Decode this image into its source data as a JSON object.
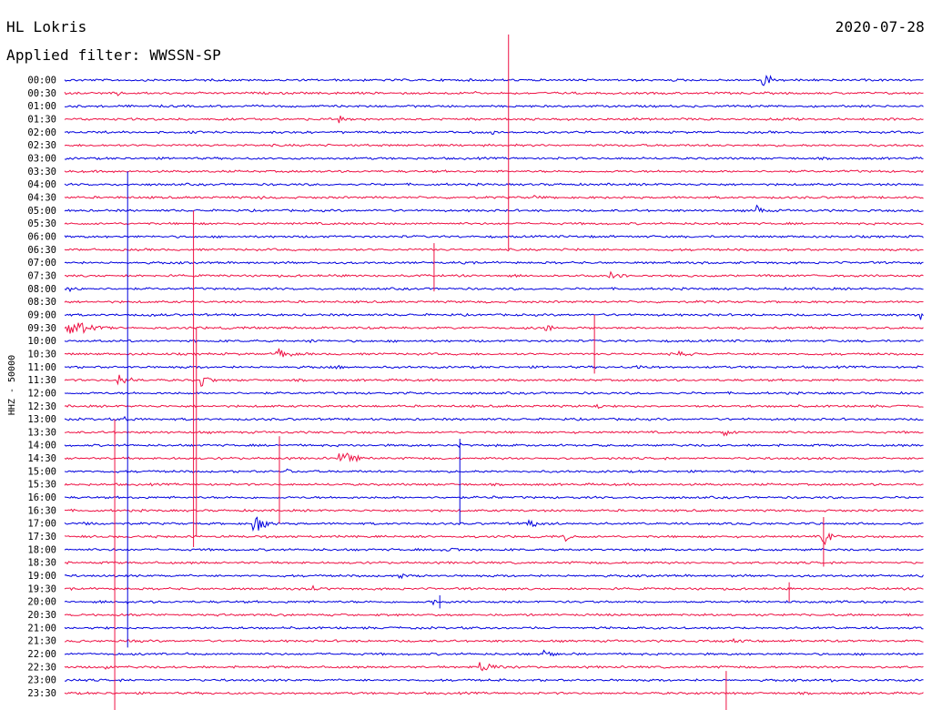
{
  "header": {
    "station": "HL Lokris",
    "filter": "Applied filter: WWSSN-SP",
    "date": "2020-07-28"
  },
  "chart_data": {
    "type": "line",
    "title": "HL Lokris",
    "subtitle": "Applied filter: WWSSN-SP",
    "ylabel": "HHZ - 50000",
    "xlabel": "",
    "row_labels": [
      "00:00",
      "00:30",
      "01:00",
      "01:30",
      "02:00",
      "02:30",
      "03:00",
      "03:30",
      "04:00",
      "04:30",
      "05:00",
      "05:30",
      "06:00",
      "06:30",
      "07:00",
      "07:30",
      "08:00",
      "08:30",
      "09:00",
      "09:30",
      "10:00",
      "10:30",
      "11:00",
      "11:30",
      "12:00",
      "12:30",
      "13:00",
      "13:30",
      "14:00",
      "14:30",
      "15:00",
      "15:30",
      "16:00",
      "16:30",
      "17:00",
      "17:30",
      "18:00",
      "18:30",
      "19:00",
      "19:30",
      "20:00",
      "20:30",
      "21:00",
      "21:30",
      "22:00",
      "22:30",
      "23:00",
      "23:30"
    ],
    "colors": {
      "even_rows": "#0000dd",
      "odd_rows": "#ee1144"
    },
    "x_range_minutes": [
      0,
      30
    ],
    "events": [
      {
        "row": 0,
        "minute": 24.4,
        "amp": 1.6,
        "dur": 0.6
      },
      {
        "row": 0,
        "minute": 17.2,
        "amp": 0.4,
        "dur": 0.3
      },
      {
        "row": 1,
        "minute": 1.9,
        "amp": 0.5,
        "dur": 0.4
      },
      {
        "row": 1,
        "minute": 14.3,
        "amp": 0.4,
        "dur": 0.3
      },
      {
        "row": 3,
        "minute": 9.6,
        "amp": 0.8,
        "dur": 0.3
      },
      {
        "row": 4,
        "minute": 14.9,
        "amp": 0.5,
        "dur": 0.5
      },
      {
        "row": 4,
        "minute": 11.2,
        "amp": 0.2,
        "dur": 1.5
      },
      {
        "row": 9,
        "minute": 16.3,
        "amp": 0.6,
        "dur": 0.8
      },
      {
        "row": 9,
        "minute": 6.9,
        "amp": 0.4,
        "dur": 0.3
      },
      {
        "row": 10,
        "minute": 24.1,
        "amp": 1.2,
        "dur": 0.6
      },
      {
        "row": 13,
        "minute": 17.9,
        "amp": 0.4,
        "dur": 0.3
      },
      {
        "row": 15,
        "minute": 19.0,
        "amp": 0.7,
        "dur": 1.0
      },
      {
        "row": 16,
        "minute": 0.1,
        "amp": 0.7,
        "dur": 0.8
      },
      {
        "row": 18,
        "minute": 29.9,
        "amp": 1.3,
        "dur": 0.2
      },
      {
        "row": 18,
        "minute": 3.0,
        "amp": 0.5,
        "dur": 0.6
      },
      {
        "row": 19,
        "minute": 0.1,
        "amp": 1.4,
        "dur": 1.6
      },
      {
        "row": 19,
        "minute": 16.8,
        "amp": 0.6,
        "dur": 1.0
      },
      {
        "row": 20,
        "minute": 8.6,
        "amp": 0.4,
        "dur": 0.4
      },
      {
        "row": 21,
        "minute": 7.4,
        "amp": 0.9,
        "dur": 1.0
      },
      {
        "row": 21,
        "minute": 21.5,
        "amp": 0.5,
        "dur": 1.0
      },
      {
        "row": 22,
        "minute": 9.5,
        "amp": 0.5,
        "dur": 0.5
      },
      {
        "row": 22,
        "minute": 19.9,
        "amp": 0.5,
        "dur": 1.0
      },
      {
        "row": 23,
        "minute": 1.9,
        "amp": 1.0,
        "dur": 0.8
      },
      {
        "row": 23,
        "minute": 4.8,
        "amp": 0.9,
        "dur": 0.7
      },
      {
        "row": 24,
        "minute": 11.8,
        "amp": 0.3,
        "dur": 1.0
      },
      {
        "row": 25,
        "minute": 18.6,
        "amp": 0.6,
        "dur": 0.3
      },
      {
        "row": 26,
        "minute": 2.1,
        "amp": 0.6,
        "dur": 0.5
      },
      {
        "row": 27,
        "minute": 23.0,
        "amp": 0.6,
        "dur": 0.8
      },
      {
        "row": 28,
        "minute": 13.8,
        "amp": 0.4,
        "dur": 0.3
      },
      {
        "row": 29,
        "minute": 9.6,
        "amp": 1.1,
        "dur": 1.2
      },
      {
        "row": 30,
        "minute": 7.8,
        "amp": 0.5,
        "dur": 0.3
      },
      {
        "row": 32,
        "minute": 15.0,
        "amp": 0.3,
        "dur": 0.5
      },
      {
        "row": 34,
        "minute": 6.6,
        "amp": 1.5,
        "dur": 0.8
      },
      {
        "row": 34,
        "minute": 16.2,
        "amp": 0.6,
        "dur": 1.2
      },
      {
        "row": 34,
        "minute": 0.6,
        "amp": 0.4,
        "dur": 1.0
      },
      {
        "row": 35,
        "minute": 17.5,
        "amp": 0.7,
        "dur": 0.5
      },
      {
        "row": 35,
        "minute": 26.5,
        "amp": 1.3,
        "dur": 0.6
      },
      {
        "row": 36,
        "minute": 13.2,
        "amp": 0.6,
        "dur": 1.4
      },
      {
        "row": 38,
        "minute": 11.7,
        "amp": 0.5,
        "dur": 1.0
      },
      {
        "row": 39,
        "minute": 8.7,
        "amp": 0.4,
        "dur": 0.8
      },
      {
        "row": 40,
        "minute": 12.9,
        "amp": 0.6,
        "dur": 0.2
      },
      {
        "row": 40,
        "minute": 2.2,
        "amp": 0.4,
        "dur": 0.3
      },
      {
        "row": 43,
        "minute": 2.1,
        "amp": 0.4,
        "dur": 0.5
      },
      {
        "row": 43,
        "minute": 23.3,
        "amp": 0.3,
        "dur": 1.5
      },
      {
        "row": 44,
        "minute": 16.7,
        "amp": 0.7,
        "dur": 1.2
      },
      {
        "row": 44,
        "minute": 4.2,
        "amp": 0.6,
        "dur": 0.3
      },
      {
        "row": 45,
        "minute": 14.5,
        "amp": 1.0,
        "dur": 1.2
      },
      {
        "row": 45,
        "minute": 1.4,
        "amp": 0.4,
        "dur": 0.6
      },
      {
        "row": 46,
        "minute": 15.1,
        "amp": 0.4,
        "dur": 0.5
      },
      {
        "row": 46,
        "minute": 26.8,
        "amp": 0.4,
        "dur": 0.2
      }
    ],
    "spikes": [
      {
        "row": 4,
        "minute": 15.5,
        "color": "odd",
        "top_row": -3.5,
        "bottom_row": 13
      },
      {
        "row": 7,
        "minute": 2.2,
        "color": "even",
        "top_row": 7,
        "bottom_row": 43.5
      },
      {
        "row": 23,
        "minute": 1.75,
        "color": "odd",
        "top_row": 26,
        "bottom_row": 50
      },
      {
        "row": 12,
        "minute": 4.5,
        "color": "odd",
        "top_row": 10,
        "bottom_row": 35.8
      },
      {
        "row": 23,
        "minute": 4.6,
        "color": "odd",
        "top_row": 19,
        "bottom_row": 35
      },
      {
        "row": 16,
        "minute": 12.9,
        "color": "odd",
        "top_row": 12.5,
        "bottom_row": 16.2
      },
      {
        "row": 21,
        "minute": 18.5,
        "color": "odd",
        "top_row": 18,
        "bottom_row": 22.5
      },
      {
        "row": 28,
        "minute": 7.5,
        "color": "odd",
        "top_row": 27.3,
        "bottom_row": 34
      },
      {
        "row": 28,
        "minute": 13.8,
        "color": "even",
        "top_row": 27.5,
        "bottom_row": 34
      },
      {
        "row": 35,
        "minute": 26.5,
        "color": "odd",
        "top_row": 33.5,
        "bottom_row": 37.3
      },
      {
        "row": 39,
        "minute": 25.3,
        "color": "odd",
        "top_row": 38.5,
        "bottom_row": 40
      },
      {
        "row": 46,
        "minute": 23.1,
        "color": "odd",
        "top_row": 45.3,
        "bottom_row": 50
      },
      {
        "row": 40,
        "minute": 13.1,
        "color": "even",
        "top_row": 39.5,
        "bottom_row": 40.5
      }
    ]
  }
}
